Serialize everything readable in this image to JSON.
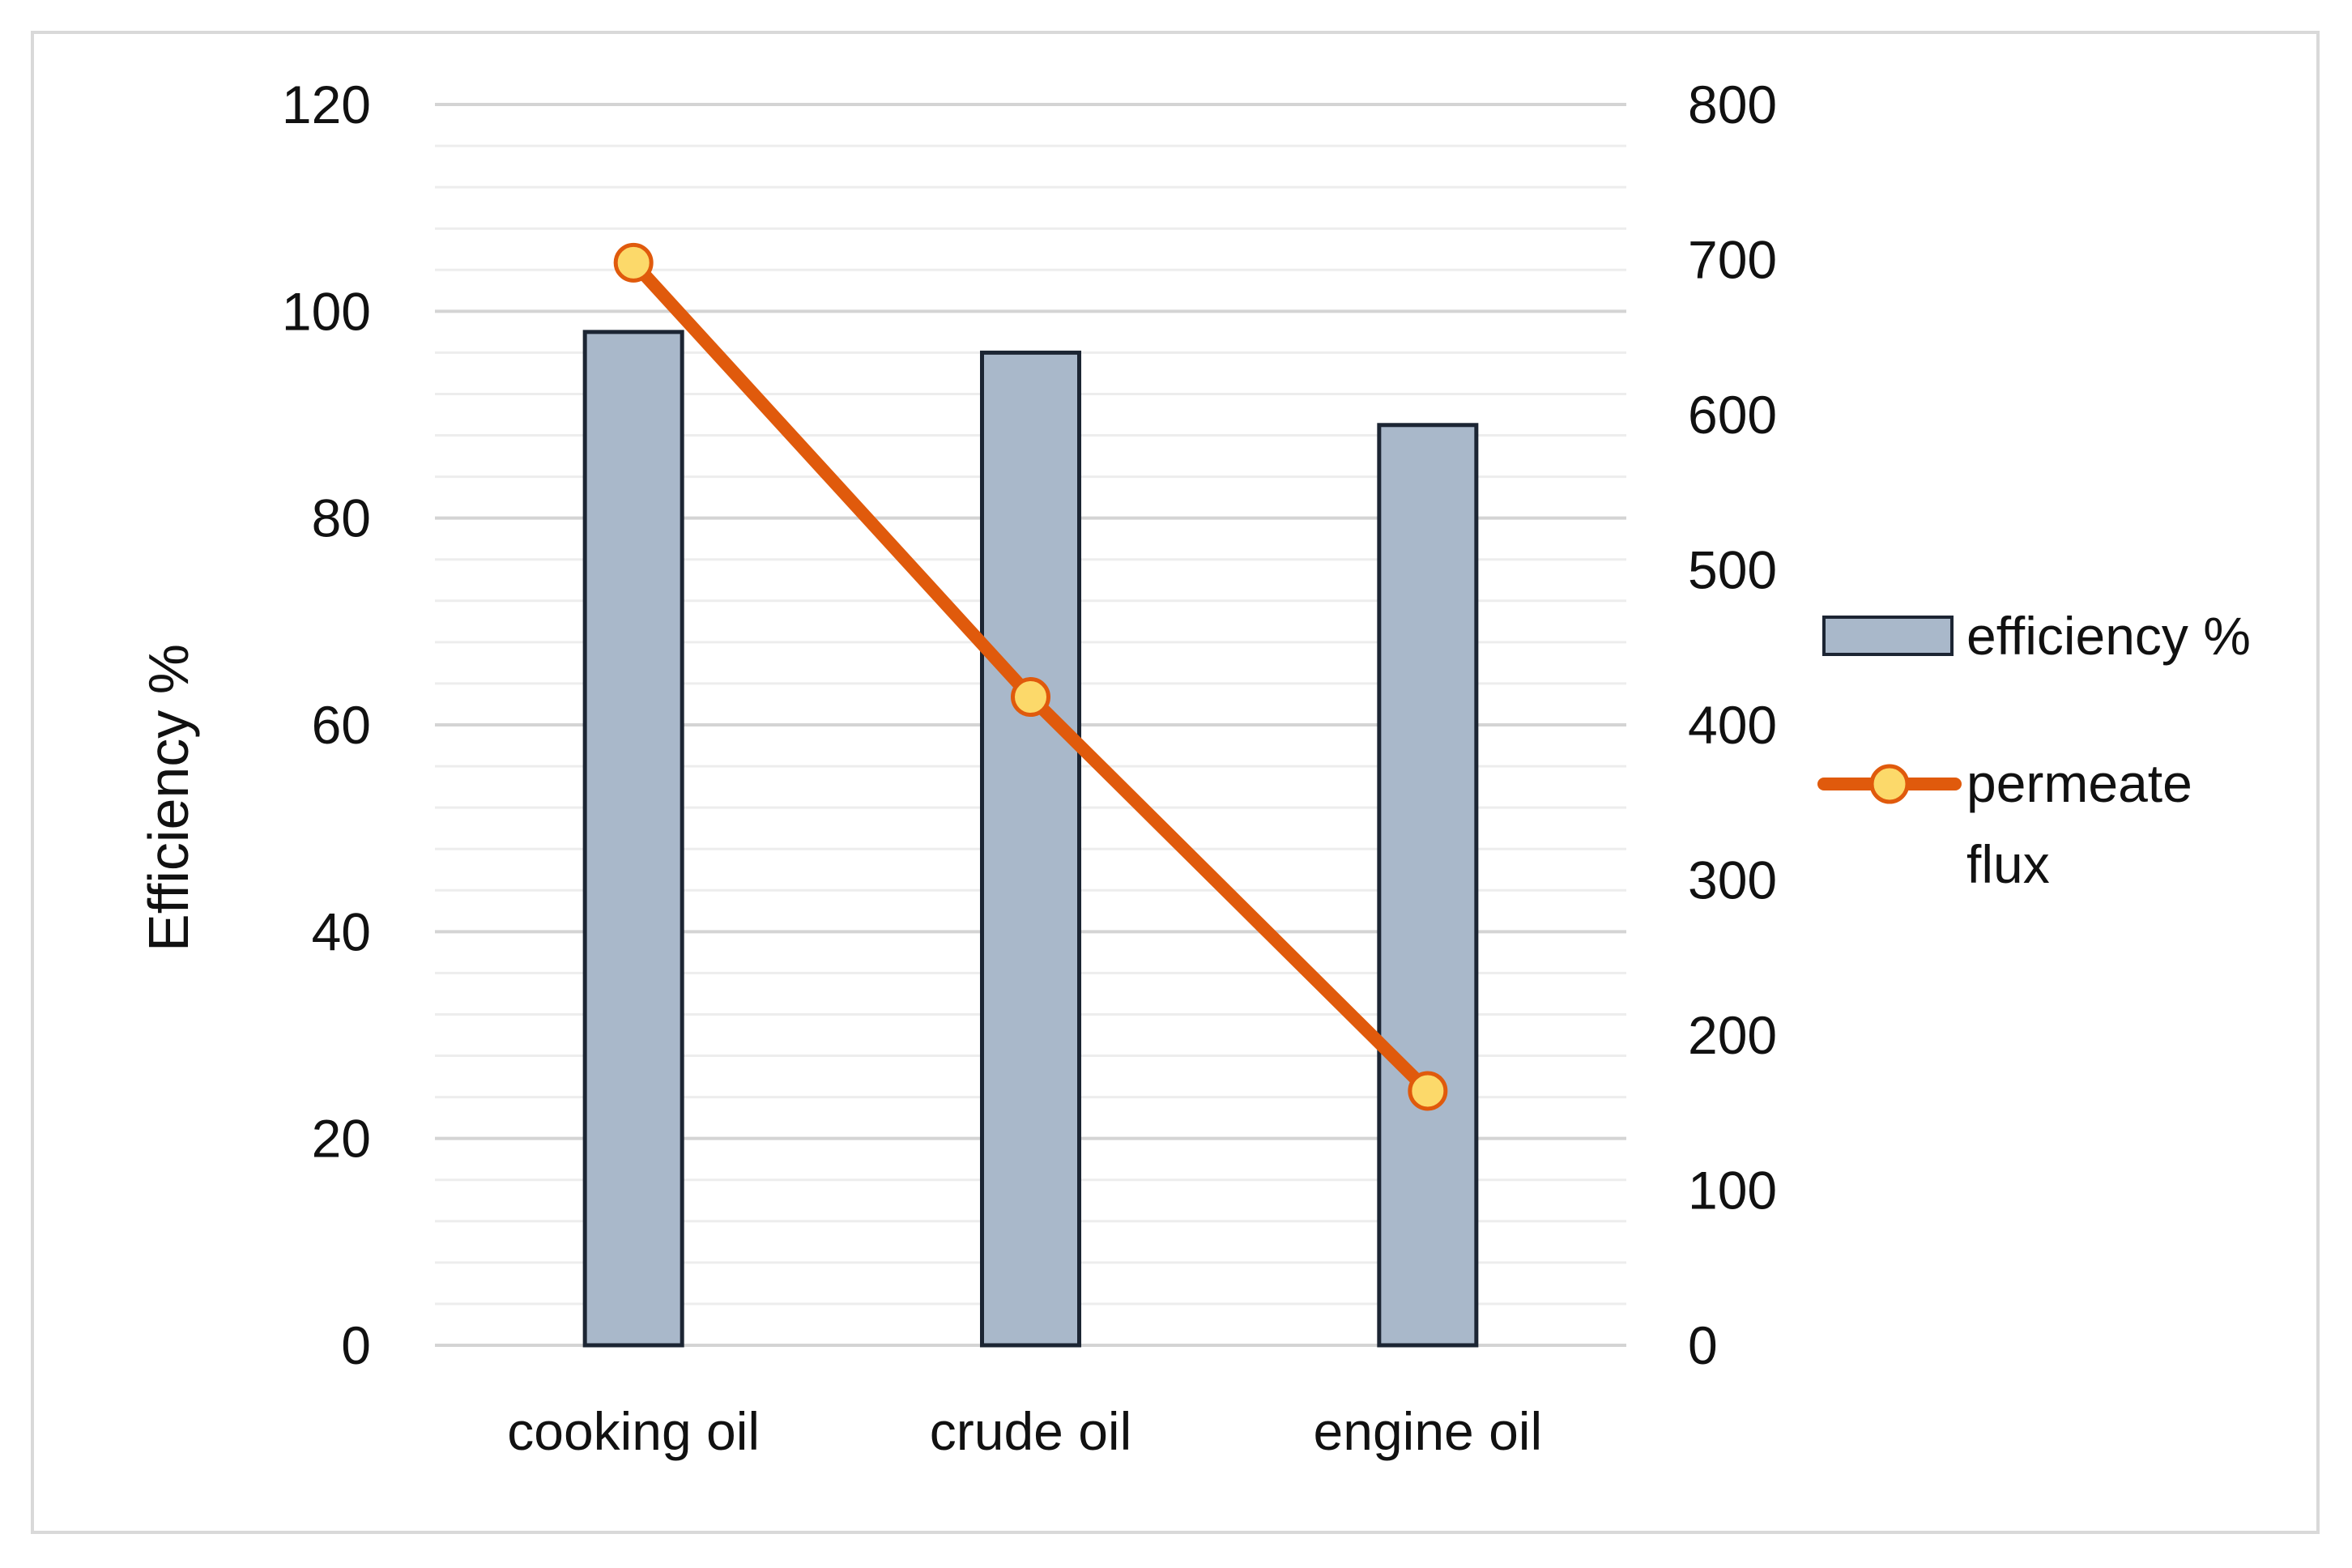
{
  "chart_data": {
    "type": "bar",
    "categories": [
      "cooking oil",
      "crude oil",
      "engine oil"
    ],
    "series": [
      {
        "name": "efficiency %",
        "chart_type": "bar",
        "axis": "left",
        "values": [
          98,
          96,
          89
        ],
        "color": "#a9b8ca",
        "border_color": "#1c2533"
      },
      {
        "name": "permeate flux",
        "chart_type": "line",
        "axis": "right",
        "values": [
          698,
          418,
          164
        ],
        "color": "#e05a0c",
        "marker_color": "#fcd96a"
      }
    ],
    "ylabel": "Efficiency %",
    "xlabel": "",
    "ylim": [
      0,
      120
    ],
    "y_ticks": [
      "0",
      "20",
      "40",
      "60",
      "80",
      "100",
      "120"
    ],
    "y2lim": [
      0,
      800
    ],
    "y2_ticks": [
      "0",
      "100",
      "200",
      "300",
      "400",
      "500",
      "600",
      "700",
      "800"
    ],
    "grid": true,
    "legend_position": "right"
  }
}
